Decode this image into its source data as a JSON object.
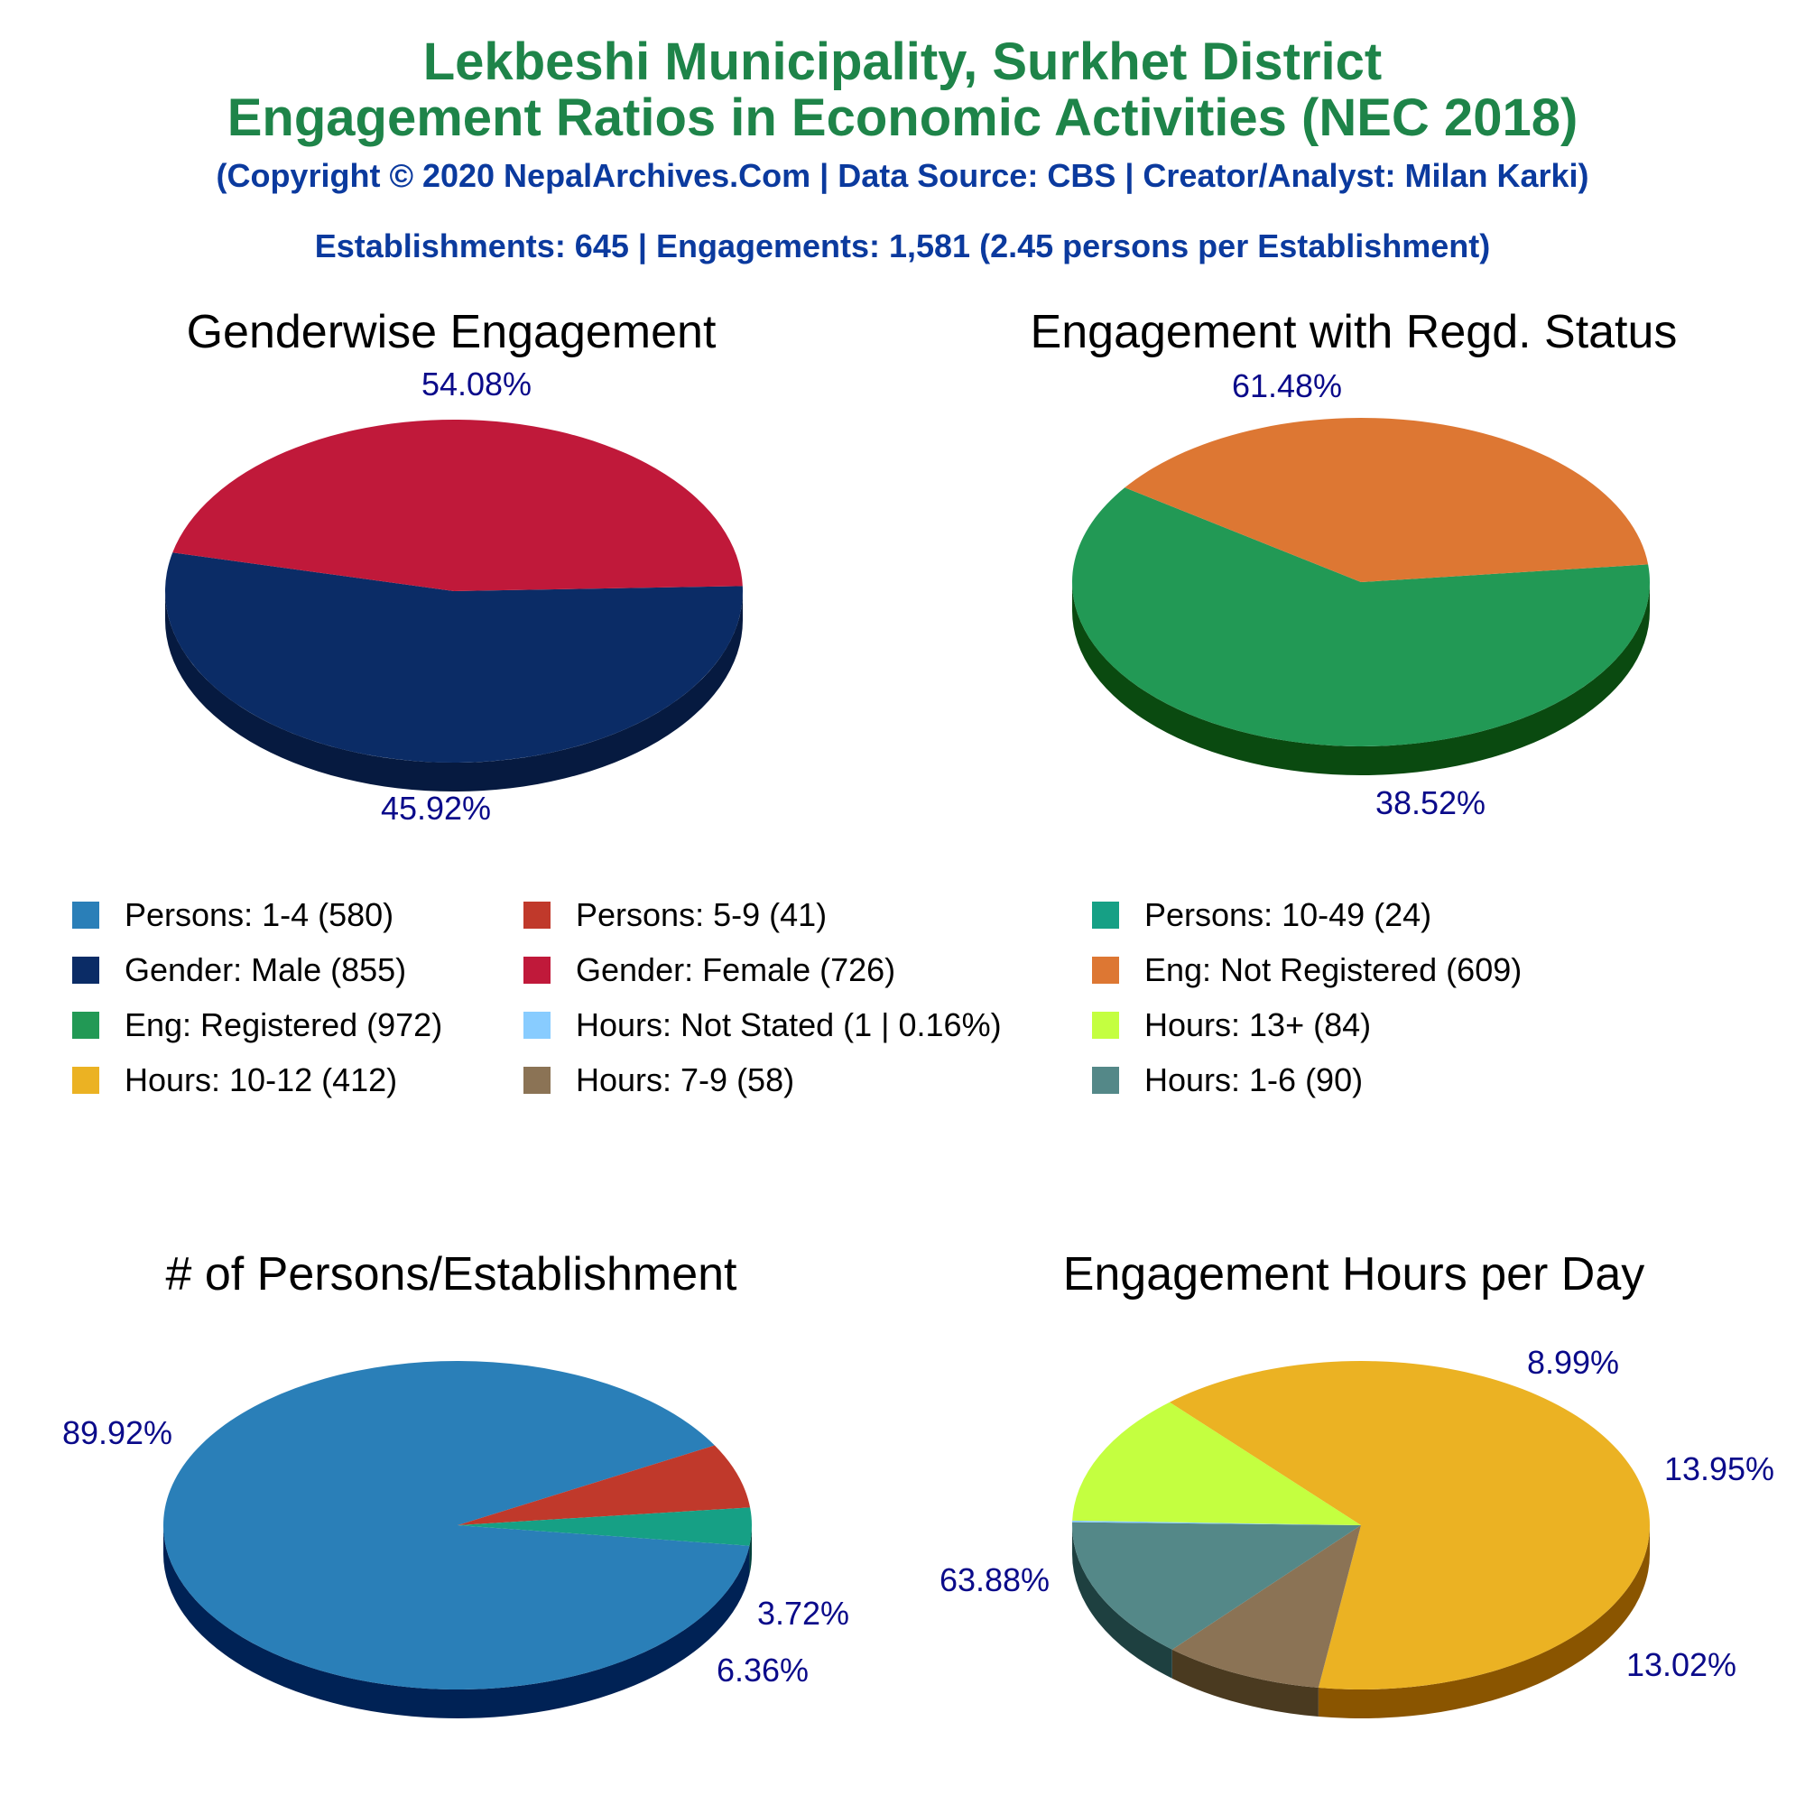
{
  "header": {
    "title_line1": "Lekbeshi Municipality, Surkhet District",
    "title_line2": "Engagement Ratios in Economic Activities (NEC 2018)",
    "copyright": "(Copyright © 2020 NepalArchives.Com | Data Source: CBS | Creator/Analyst: Milan Karki)",
    "summary": "Establishments: 645 | Engagements: 1,581 (2.45 persons per Establishment)"
  },
  "legend": [
    {
      "label": "Persons: 1-4 (580)",
      "color": "#2a7fb8"
    },
    {
      "label": "Persons: 5-9 (41)",
      "color": "#c0392b"
    },
    {
      "label": "Persons: 10-49 (24)",
      "color": "#16a085"
    },
    {
      "label": "Gender: Male (855)",
      "color": "#0b2c66"
    },
    {
      "label": "Gender: Female (726)",
      "color": "#c0193a"
    },
    {
      "label": "Eng: Not Registered (609)",
      "color": "#dd7733"
    },
    {
      "label": "Eng: Registered (972)",
      "color": "#229955"
    },
    {
      "label": "Hours: Not Stated (1 | 0.16%)",
      "color": "#88ccff"
    },
    {
      "label": "Hours: 13+ (84)",
      "color": "#c4ff40"
    },
    {
      "label": "Hours: 10-12 (412)",
      "color": "#ebb223"
    },
    {
      "label": "Hours: 7-9 (58)",
      "color": "#8b7355"
    },
    {
      "label": "Hours: 1-6 (90)",
      "color": "#548888"
    }
  ],
  "chart_data": [
    {
      "type": "pie",
      "title": "Genderwise Engagement",
      "slices": [
        {
          "name": "Gender: Male",
          "value": 855,
          "percent": 54.08,
          "label": "54.08%",
          "color": "#0b2c66",
          "side": "#061a40"
        },
        {
          "name": "Gender: Female",
          "value": 726,
          "percent": 45.92,
          "label": "45.92%",
          "color": "#c0193a",
          "side": "#660000"
        }
      ]
    },
    {
      "type": "pie",
      "title": "Engagement with Regd. Status",
      "slices": [
        {
          "name": "Eng: Registered",
          "value": 972,
          "percent": 61.48,
          "label": "61.48%",
          "color": "#229955",
          "side": "#0a4a10"
        },
        {
          "name": "Eng: Not Registered",
          "value": 609,
          "percent": 38.52,
          "label": "38.52%",
          "color": "#dd7733",
          "side": "#7a1a00"
        }
      ]
    },
    {
      "type": "pie",
      "title": "# of Persons/Establishment",
      "slices": [
        {
          "name": "Persons: 1-4",
          "value": 580,
          "percent": 89.92,
          "label": "89.92%",
          "color": "#2a7fb8",
          "side": "#002255"
        },
        {
          "name": "Persons: 5-9",
          "value": 41,
          "percent": 6.36,
          "label": "6.36%",
          "color": "#c0392b",
          "side": "#6b0000"
        },
        {
          "name": "Persons: 10-49",
          "value": 24,
          "percent": 3.72,
          "label": "3.72%",
          "color": "#16a085",
          "side": "#00403a"
        }
      ]
    },
    {
      "type": "pie",
      "title": "Engagement Hours per Day",
      "slices": [
        {
          "name": "Hours: 10-12",
          "value": 412,
          "percent": 63.88,
          "label": "63.88%",
          "color": "#ebb223",
          "side": "#8a5500"
        },
        {
          "name": "Hours: 7-9",
          "value": 58,
          "percent": 8.99,
          "label": "8.99%",
          "color": "#8b7355",
          "side": "#4a3a20"
        },
        {
          "name": "Hours: 1-6",
          "value": 90,
          "percent": 13.95,
          "label": "13.95%",
          "color": "#548888",
          "side": "#1e4040"
        },
        {
          "name": "Hours: Not Stated",
          "value": 1,
          "percent": 0.16,
          "label": "",
          "color": "#88ccff",
          "side": "#3377aa"
        },
        {
          "name": "Hours: 13+",
          "value": 84,
          "percent": 13.02,
          "label": "13.02%",
          "color": "#c4ff40",
          "side": "#66aa00"
        }
      ]
    }
  ]
}
